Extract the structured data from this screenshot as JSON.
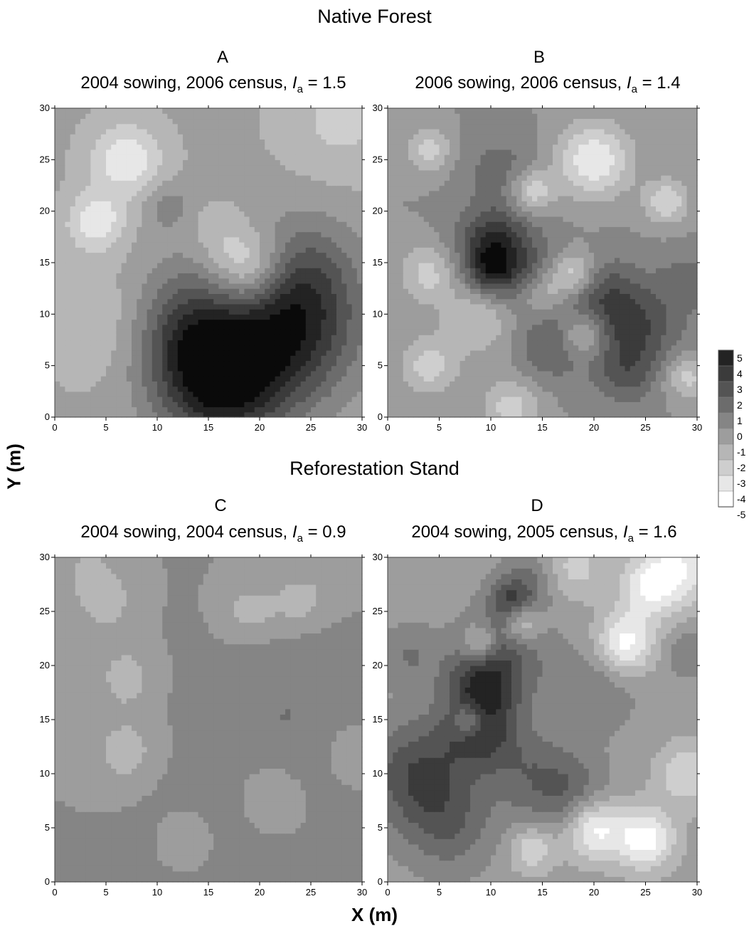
{
  "sections": {
    "top": "Native Forest",
    "bottom": "Reforestation Stand"
  },
  "axis_titles": {
    "x": "X (m)",
    "y": "Y (m)"
  },
  "panels": [
    {
      "letter": "A",
      "sowing": "2004 sowing,",
      "census": "2006 census,",
      "index_symbol": "I",
      "index_subscript": "a",
      "equals": "=",
      "index_value": "1.5"
    },
    {
      "letter": "B",
      "sowing": "2006 sowing,",
      "census": "2006 census,",
      "index_symbol": "I",
      "index_subscript": "a",
      "equals": "=",
      "index_value": "1.4"
    },
    {
      "letter": "C",
      "sowing": "2004 sowing,",
      "census": "2004 census,",
      "index_symbol": "I",
      "index_subscript": "a",
      "equals": "=",
      "index_value": "0.9"
    },
    {
      "letter": "D",
      "sowing": "2004 sowing,",
      "census": "2005 census,",
      "index_symbol": "I",
      "index_subscript": "a",
      "equals": "=",
      "index_value": "1.6"
    }
  ],
  "chart_data": {
    "type": "heatmap",
    "x_ticks": [
      0,
      5,
      10,
      15,
      20,
      25,
      30
    ],
    "y_ticks": [
      0,
      5,
      10,
      15,
      20,
      25,
      30
    ],
    "xlim": [
      0,
      30
    ],
    "ylim": [
      0,
      30
    ],
    "colorbar": {
      "ticks": [
        5,
        4,
        3,
        2,
        1,
        0,
        -1,
        -2,
        -3,
        -4,
        -5
      ],
      "range": [
        -5,
        5
      ],
      "scale": "grayscale, black = high, white = low"
    },
    "panels": [
      {
        "letter": "A",
        "base": -0.8,
        "peaks": [
          {
            "x": 14,
            "y": 6,
            "value": 3.5,
            "spread": 4
          },
          {
            "x": 16,
            "y": 2,
            "value": 3.3,
            "spread": 4
          },
          {
            "x": 23.5,
            "y": 8.5,
            "value": 4.2,
            "spread": 4.5
          },
          {
            "x": 13,
            "y": 10,
            "value": 2.2,
            "spread": 4
          },
          {
            "x": 24,
            "y": 14,
            "value": 2.5,
            "spread": 4
          },
          {
            "x": 20,
            "y": 4,
            "value": 2.0,
            "spread": 4
          },
          {
            "x": 11,
            "y": 20.5,
            "value": 1.5,
            "spread": 1.5
          },
          {
            "x": 7,
            "y": 25,
            "value": -3.0,
            "spread": 2.5
          },
          {
            "x": 4,
            "y": 19,
            "value": -3.0,
            "spread": 2
          },
          {
            "x": 19,
            "y": 14.5,
            "value": -3.5,
            "spread": 2.5
          },
          {
            "x": 28,
            "y": 29,
            "value": -1.5,
            "spread": 4
          },
          {
            "x": 5,
            "y": 9,
            "value": -1.2,
            "spread": 4
          },
          {
            "x": 16,
            "y": 18,
            "value": -1.0,
            "spread": 2
          }
        ]
      },
      {
        "letter": "B",
        "base": 0,
        "peaks": [
          {
            "x": 11,
            "y": 15,
            "value": 4.0,
            "spread": 3
          },
          {
            "x": 10,
            "y": 14.5,
            "value": 2.0,
            "spread": 1.5
          },
          {
            "x": 24,
            "y": 8.5,
            "value": 3.0,
            "spread": 3
          },
          {
            "x": 21,
            "y": 12,
            "value": 2.2,
            "spread": 2.5
          },
          {
            "x": 16,
            "y": 7,
            "value": 2.0,
            "spread": 2.5
          },
          {
            "x": 23,
            "y": 4,
            "value": 1.8,
            "spread": 2
          },
          {
            "x": 10,
            "y": 18,
            "value": 1.5,
            "spread": 2
          },
          {
            "x": 11,
            "y": 24,
            "value": 1.5,
            "spread": 2.5
          },
          {
            "x": 29,
            "y": 13,
            "value": 1.5,
            "spread": 2
          },
          {
            "x": 20,
            "y": 25,
            "value": -4.0,
            "spread": 2.5
          },
          {
            "x": 27,
            "y": 21,
            "value": -3.0,
            "spread": 1.5
          },
          {
            "x": 14,
            "y": 22,
            "value": -3.0,
            "spread": 1.5
          },
          {
            "x": 18,
            "y": 14,
            "value": -3.0,
            "spread": 1.5
          },
          {
            "x": 19,
            "y": 8,
            "value": -3.0,
            "spread": 1.5
          },
          {
            "x": 9,
            "y": 10,
            "value": -2.5,
            "spread": 2.5
          },
          {
            "x": 4,
            "y": 14,
            "value": -2.5,
            "spread": 2
          },
          {
            "x": 4,
            "y": 5,
            "value": -2.5,
            "spread": 2
          },
          {
            "x": 12,
            "y": 1,
            "value": -2.5,
            "spread": 2
          },
          {
            "x": 4,
            "y": 26,
            "value": -2.5,
            "spread": 1.5
          },
          {
            "x": 29,
            "y": 4,
            "value": -2.5,
            "spread": 1.5
          },
          {
            "x": 15,
            "y": 12,
            "value": -2.0,
            "spread": 1.5
          }
        ]
      },
      {
        "letter": "C",
        "base": 0,
        "peaks": [
          {
            "x": 23,
            "y": 15,
            "value": 1.0,
            "spread": 6
          },
          {
            "x": 15,
            "y": 5,
            "value": 0.7,
            "spread": 5
          },
          {
            "x": 7,
            "y": 12,
            "value": -1.5,
            "spread": 2.5
          },
          {
            "x": 7,
            "y": 19,
            "value": -1.5,
            "spread": 2
          },
          {
            "x": 5,
            "y": 26,
            "value": -1.5,
            "spread": 2
          },
          {
            "x": 19,
            "y": 25,
            "value": -1.5,
            "spread": 2
          },
          {
            "x": 24,
            "y": 26,
            "value": -1.5,
            "spread": 2
          },
          {
            "x": 21,
            "y": 8,
            "value": -1.5,
            "spread": 2.5
          },
          {
            "x": 13,
            "y": 4,
            "value": -1.5,
            "spread": 2
          },
          {
            "x": 29,
            "y": 12,
            "value": -1.3,
            "spread": 2
          },
          {
            "x": 3,
            "y": 29,
            "value": -1.0,
            "spread": 2
          },
          {
            "x": 29,
            "y": 29,
            "value": -1.0,
            "spread": 2
          }
        ]
      },
      {
        "letter": "D",
        "base": -0.5,
        "peaks": [
          {
            "x": 3,
            "y": 10,
            "value": 3.5,
            "spread": 3.5
          },
          {
            "x": 9,
            "y": 14,
            "value": 3.5,
            "spread": 2.5
          },
          {
            "x": 9,
            "y": 18,
            "value": 3.2,
            "spread": 2.5
          },
          {
            "x": 12,
            "y": 26,
            "value": 3.0,
            "spread": 1.5
          },
          {
            "x": 14,
            "y": 10,
            "value": 2.0,
            "spread": 3
          },
          {
            "x": 11,
            "y": 21,
            "value": 2.5,
            "spread": 3
          },
          {
            "x": 18,
            "y": 8,
            "value": 2.0,
            "spread": 2.5
          },
          {
            "x": 20,
            "y": 18,
            "value": 1.5,
            "spread": 3
          },
          {
            "x": 14,
            "y": 28,
            "value": 1.5,
            "spread": 2
          },
          {
            "x": 6,
            "y": 5,
            "value": 2.0,
            "spread": 3
          },
          {
            "x": 2,
            "y": 21,
            "value": 1.5,
            "spread": 2
          },
          {
            "x": 29,
            "y": 21,
            "value": 1.5,
            "spread": 1.5
          },
          {
            "x": 25,
            "y": 4,
            "value": -4.0,
            "spread": 2
          },
          {
            "x": 20,
            "y": 5,
            "value": -4.0,
            "spread": 2
          },
          {
            "x": 23,
            "y": 22,
            "value": -4.0,
            "spread": 2
          },
          {
            "x": 28,
            "y": 29,
            "value": -3.5,
            "spread": 2.5
          },
          {
            "x": 8,
            "y": 15,
            "value": -3.0,
            "spread": 1.2
          },
          {
            "x": 13,
            "y": 24,
            "value": -3.0,
            "spread": 1.2
          },
          {
            "x": 9,
            "y": 22,
            "value": -3.0,
            "spread": 1.2
          },
          {
            "x": 14,
            "y": 3,
            "value": -2.5,
            "spread": 1.5
          },
          {
            "x": 29,
            "y": 10,
            "value": -2.5,
            "spread": 2
          },
          {
            "x": 25,
            "y": 27,
            "value": -2.5,
            "spread": 2
          },
          {
            "x": 18,
            "y": 29,
            "value": -2.0,
            "spread": 2
          }
        ]
      }
    ]
  }
}
